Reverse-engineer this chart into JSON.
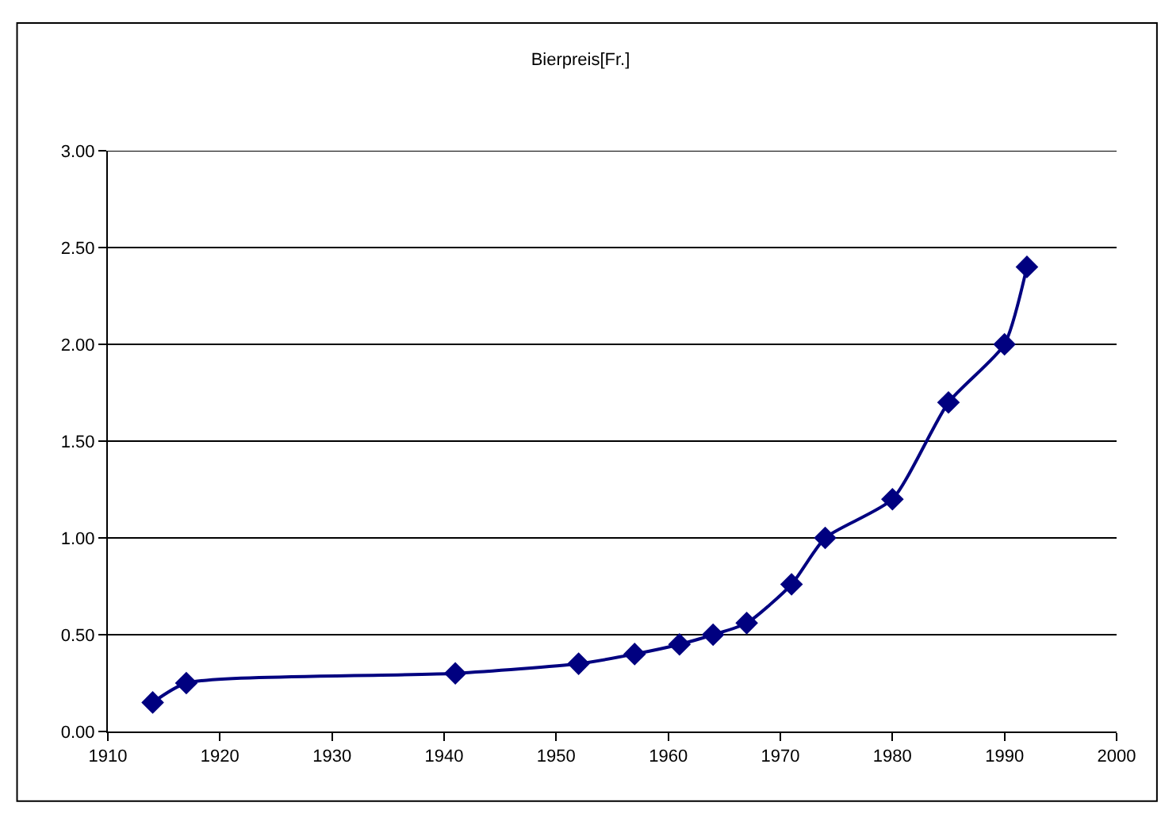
{
  "chart_data": {
    "type": "line",
    "title": "Bierpreis[Fr.]",
    "x": [
      1914,
      1917,
      1941,
      1952,
      1957,
      1961,
      1964,
      1967,
      1971,
      1974,
      1980,
      1985,
      1990,
      1992
    ],
    "series": [
      {
        "color": "#000080",
        "values": [
          0.15,
          0.25,
          0.3,
          0.35,
          0.4,
          0.45,
          0.5,
          0.56,
          0.76,
          1.0,
          1.2,
          1.7,
          2.0,
          2.4
        ]
      }
    ],
    "xlim": [
      1910,
      2000
    ],
    "xticks": [
      1910,
      1920,
      1930,
      1940,
      1950,
      1960,
      1970,
      1980,
      1990,
      2000
    ],
    "ylim": [
      0,
      3
    ],
    "yticks": [
      {
        "value": 0,
        "label": "0.00"
      },
      {
        "value": 0.5,
        "label": "0.50"
      },
      {
        "value": 1,
        "label": "1.00"
      },
      {
        "value": 1.5,
        "label": "1.50"
      },
      {
        "value": 2,
        "label": "2.00"
      },
      {
        "value": 2.5,
        "label": "2.50"
      },
      {
        "value": 3,
        "label": "3.00"
      }
    ],
    "grid": "y",
    "marker": "diamond",
    "line_style": "solid"
  }
}
